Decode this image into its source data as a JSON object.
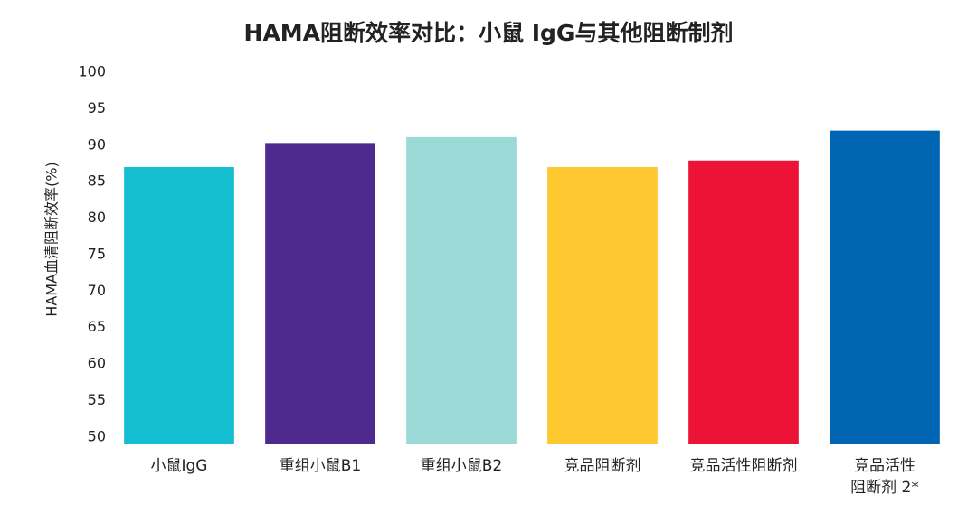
{
  "chart_data": {
    "type": "bar",
    "title": "HAMA阻断效率对比：小鼠 IgG与其他阻断制剂",
    "ylabel": "HAMA血清阻断效率(%)",
    "categories": [
      "小鼠IgG",
      "重组小鼠B1",
      "重组小鼠B2",
      "竞品阻断剂",
      "竞品活性阻断剂",
      "竞品活性\n阻断剂 2*"
    ],
    "values": [
      87.0,
      90.3,
      91.1,
      87.0,
      87.9,
      92.0
    ],
    "colors": [
      "#14bdd0",
      "#4e2a8e",
      "#9ad9d6",
      "#fdc830",
      "#ec1337",
      "#0066b3"
    ],
    "ylim": [
      49,
      100
    ],
    "yticks": [
      50,
      55,
      60,
      65,
      70,
      75,
      80,
      85,
      90,
      95,
      100
    ],
    "grid": false
  }
}
